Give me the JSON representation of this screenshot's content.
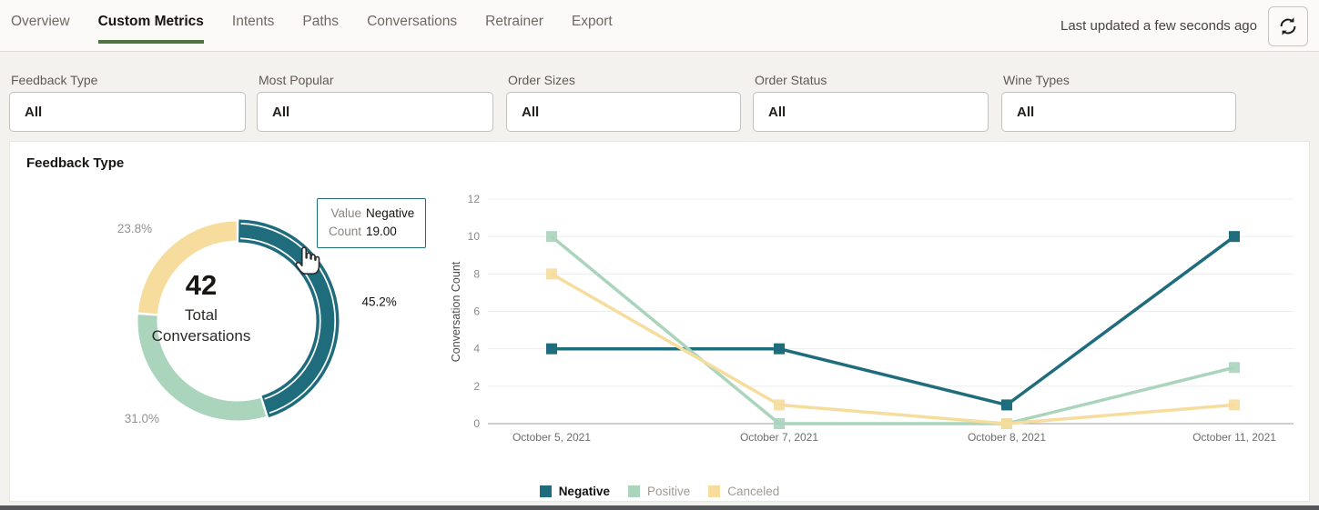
{
  "tabs": {
    "items": [
      {
        "label": "Overview",
        "active": false
      },
      {
        "label": "Custom Metrics",
        "active": true
      },
      {
        "label": "Intents",
        "active": false
      },
      {
        "label": "Paths",
        "active": false
      },
      {
        "label": "Conversations",
        "active": false
      },
      {
        "label": "Retrainer",
        "active": false
      },
      {
        "label": "Export",
        "active": false
      }
    ]
  },
  "header": {
    "last_updated": "Last updated a few seconds ago"
  },
  "filters": {
    "items": [
      {
        "label": "Feedback Type",
        "value": "All"
      },
      {
        "label": "Most Popular",
        "value": "All"
      },
      {
        "label": "Order Sizes",
        "value": "All"
      },
      {
        "label": "Order Status",
        "value": "All"
      },
      {
        "label": "Wine Types",
        "value": "All"
      }
    ]
  },
  "panel": {
    "title": "Feedback Type"
  },
  "chart_data": [
    {
      "type": "pie",
      "title": "Feedback Type",
      "center_value": "42",
      "center_label": "Total Conversations",
      "total": 42,
      "slices": [
        {
          "name": "Negative",
          "value": 19,
          "percent": "45.2%",
          "color": "#1f6c7d",
          "highlighted": true
        },
        {
          "name": "Positive",
          "value": 13,
          "percent": "31.0%",
          "color": "#aad4bc",
          "highlighted": false
        },
        {
          "name": "Canceled",
          "value": 10,
          "percent": "23.8%",
          "color": "#f6dd9d",
          "highlighted": false
        }
      ],
      "tooltip": {
        "value_label": "Value",
        "value": "Negative",
        "count_label": "Count",
        "count": "19.00"
      }
    },
    {
      "type": "line",
      "x": [
        "October 5, 2021",
        "October 7, 2021",
        "October 8, 2021",
        "October 11, 2021"
      ],
      "xlabel": "",
      "ylabel": "Conversation Count",
      "ylim": [
        0,
        12
      ],
      "yticks": [
        0,
        2,
        4,
        6,
        8,
        10,
        12
      ],
      "grid": true,
      "legend_position": "bottom",
      "series": [
        {
          "name": "Negative",
          "values": [
            4,
            4,
            1,
            10
          ],
          "color": "#1f6c7d",
          "highlighted": true
        },
        {
          "name": "Positive",
          "values": [
            10,
            0,
            0,
            3
          ],
          "color": "#aad4bc",
          "highlighted": false
        },
        {
          "name": "Canceled",
          "values": [
            8,
            1,
            0,
            1
          ],
          "color": "#f6dd9d",
          "highlighted": false
        }
      ]
    }
  ],
  "colors": {
    "negative_teal": "#1f6c7d",
    "positive_green": "#aad4bc",
    "canceled_yellow": "#f6dd9d",
    "tab_underline": "#507440",
    "bottom_bar": "#55565a"
  }
}
